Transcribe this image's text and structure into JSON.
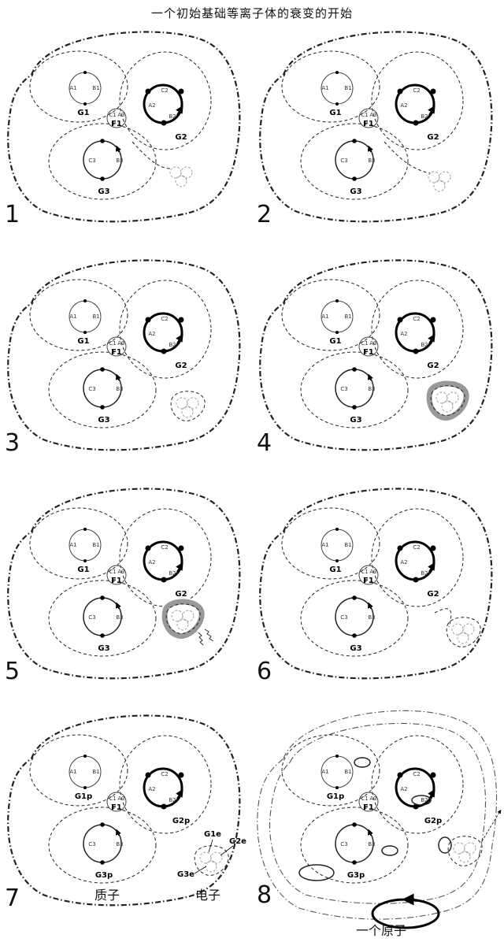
{
  "title": "一个初始基础等离子体的衰变的开始",
  "panels": [
    {
      "number": "1",
      "labels": {
        "g1": "G1",
        "g2": "G2",
        "g3": "G3",
        "f1": "F1"
      }
    },
    {
      "number": "2",
      "labels": {
        "g1": "G1",
        "g2": "G2",
        "g3": "G3",
        "f1": "F1"
      }
    },
    {
      "number": "3",
      "labels": {
        "g1": "G1",
        "g2": "G2",
        "g3": "G3",
        "f1": "F1"
      }
    },
    {
      "number": "4",
      "labels": {
        "g1": "G1",
        "g2": "G2",
        "g3": "G3",
        "f1": "F1"
      }
    },
    {
      "number": "5",
      "labels": {
        "g1": "G1",
        "g2": "G2",
        "g3": "G3",
        "f1": "F1"
      }
    },
    {
      "number": "6",
      "labels": {
        "g1": "G1",
        "g2": "G2",
        "g3": "G3",
        "f1": "F1"
      }
    },
    {
      "number": "7",
      "labels": {
        "g1": "G1p",
        "g2": "G2p",
        "g3": "G3p",
        "f1": "F1"
      }
    },
    {
      "number": "8",
      "labels": {
        "g1": "G1p",
        "g2": "G2p",
        "g3": "G3p",
        "f1": "F1"
      }
    }
  ],
  "node_labels": {
    "a1": "A1",
    "b1": "B1",
    "a2": "A2",
    "b2": "B2",
    "c2": "C2",
    "c3": "C3",
    "b3": "B3",
    "c1": "C1",
    "a3": "A3"
  },
  "electron_labels": {
    "g1e": "G1e",
    "g2e": "G2e",
    "g3e": "G3e"
  },
  "captions": {
    "proton": "质子",
    "electron": "电子",
    "atom": "一个原子"
  }
}
